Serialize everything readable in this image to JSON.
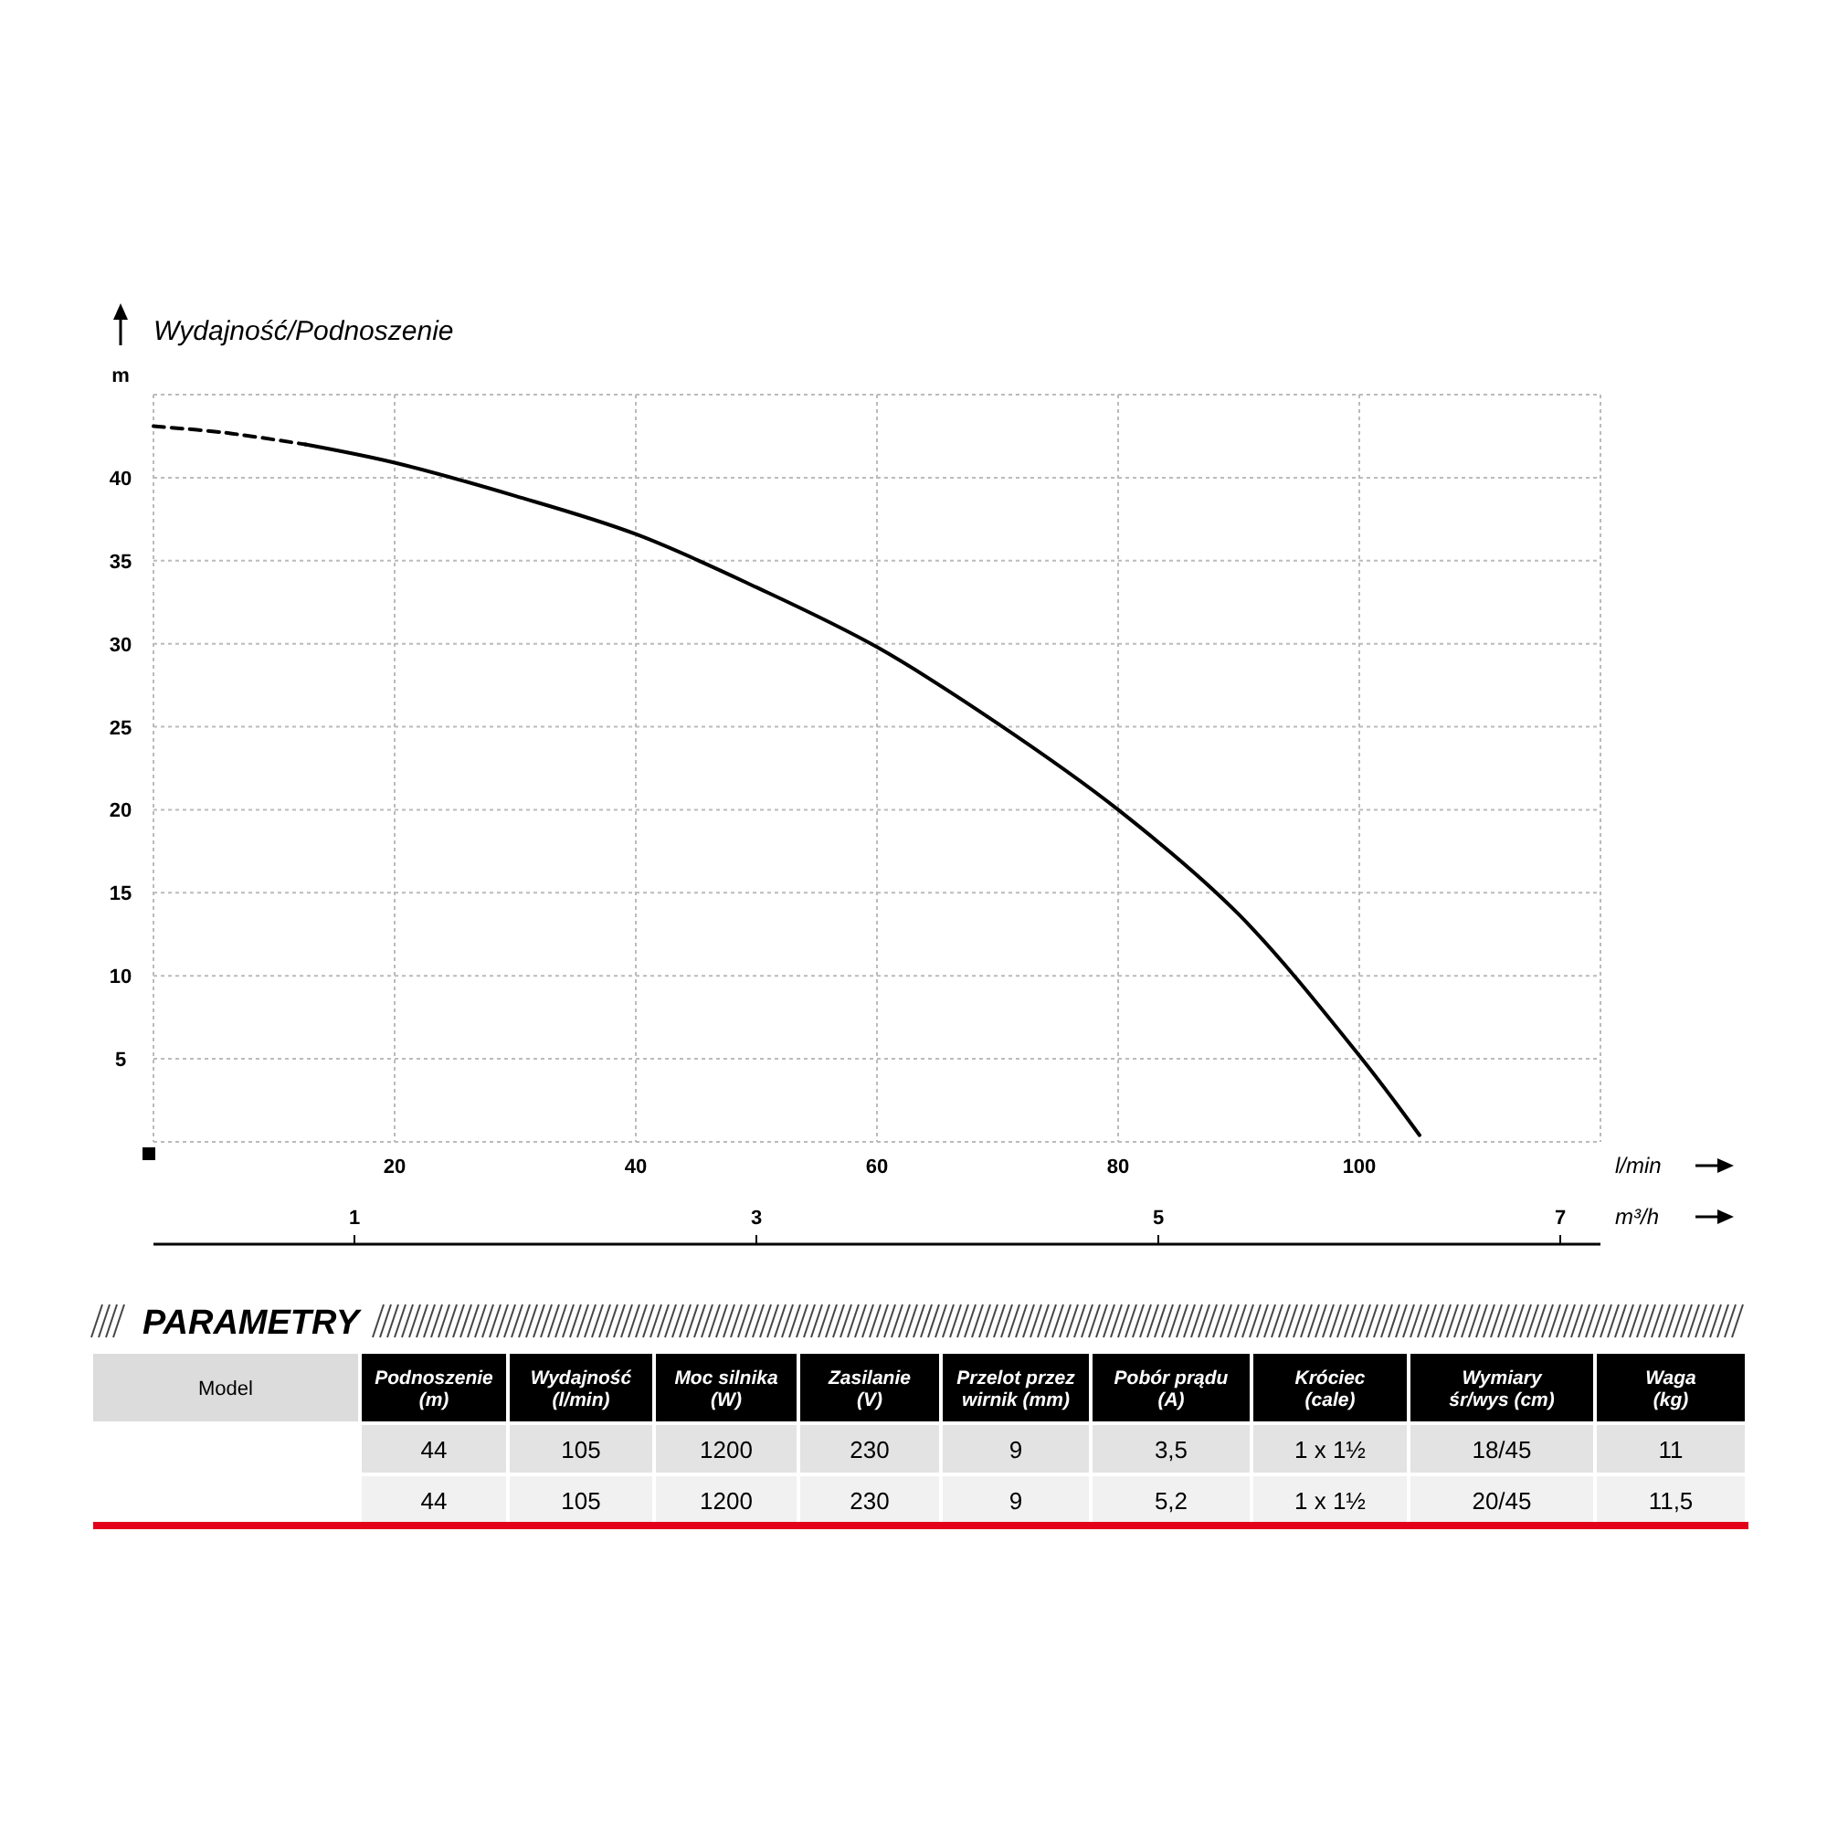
{
  "chart_data": [
    {
      "type": "line",
      "title": "Wydajność/Podnoszenie",
      "ylabel": "m",
      "xlabel": "l/min",
      "x2label": "m³/h",
      "xlim": [
        0,
        120
      ],
      "xticks": [
        20,
        40,
        60,
        80,
        100
      ],
      "x2lim": [
        0,
        7.2
      ],
      "x2ticks": [
        1,
        3,
        5,
        7
      ],
      "ylim": [
        0,
        45
      ],
      "yticks": [
        5,
        10,
        15,
        20,
        25,
        30,
        35,
        40
      ],
      "grid": true,
      "marker": "none",
      "series": [
        {
          "color": "#000000",
          "line_style": "dashed",
          "x": [
            0,
            6,
            12.6
          ],
          "values": [
            43.1,
            42.7,
            42.0
          ]
        },
        {
          "color": "#000000",
          "line_style": "solid",
          "x": [
            12.6,
            20,
            30,
            40,
            50,
            60,
            70,
            80,
            90,
            100,
            105
          ],
          "values": [
            42.0,
            40.9,
            38.9,
            36.6,
            33.4,
            29.8,
            25.2,
            20.0,
            13.7,
            5.2,
            0.4
          ]
        }
      ]
    },
    {
      "type": "other",
      "title": "PARAMETRY",
      "categories": [
        "Model",
        "Podnoszenie\n(m)",
        "Wydajność\n(l/min)",
        "Moc silnika\n(W)",
        "Zasilanie\n(V)",
        "Przelot przez\nwirnik (mm)",
        "Pobór prądu\n(A)",
        "Króciec\n(cale)",
        "Wymiary\nśr/wys (cm)",
        "Waga\n(kg)"
      ],
      "y_categories": [
        null,
        null
      ],
      "cell_labels": [
        [
          "44",
          "105",
          "1200",
          "230",
          "9",
          "3,5",
          "1 x 1½",
          "18/45",
          "11"
        ],
        [
          "44",
          "105",
          "1200",
          "230",
          "9",
          "5,2",
          "1 x 1½",
          "20/45",
          "11,5"
        ]
      ]
    }
  ]
}
